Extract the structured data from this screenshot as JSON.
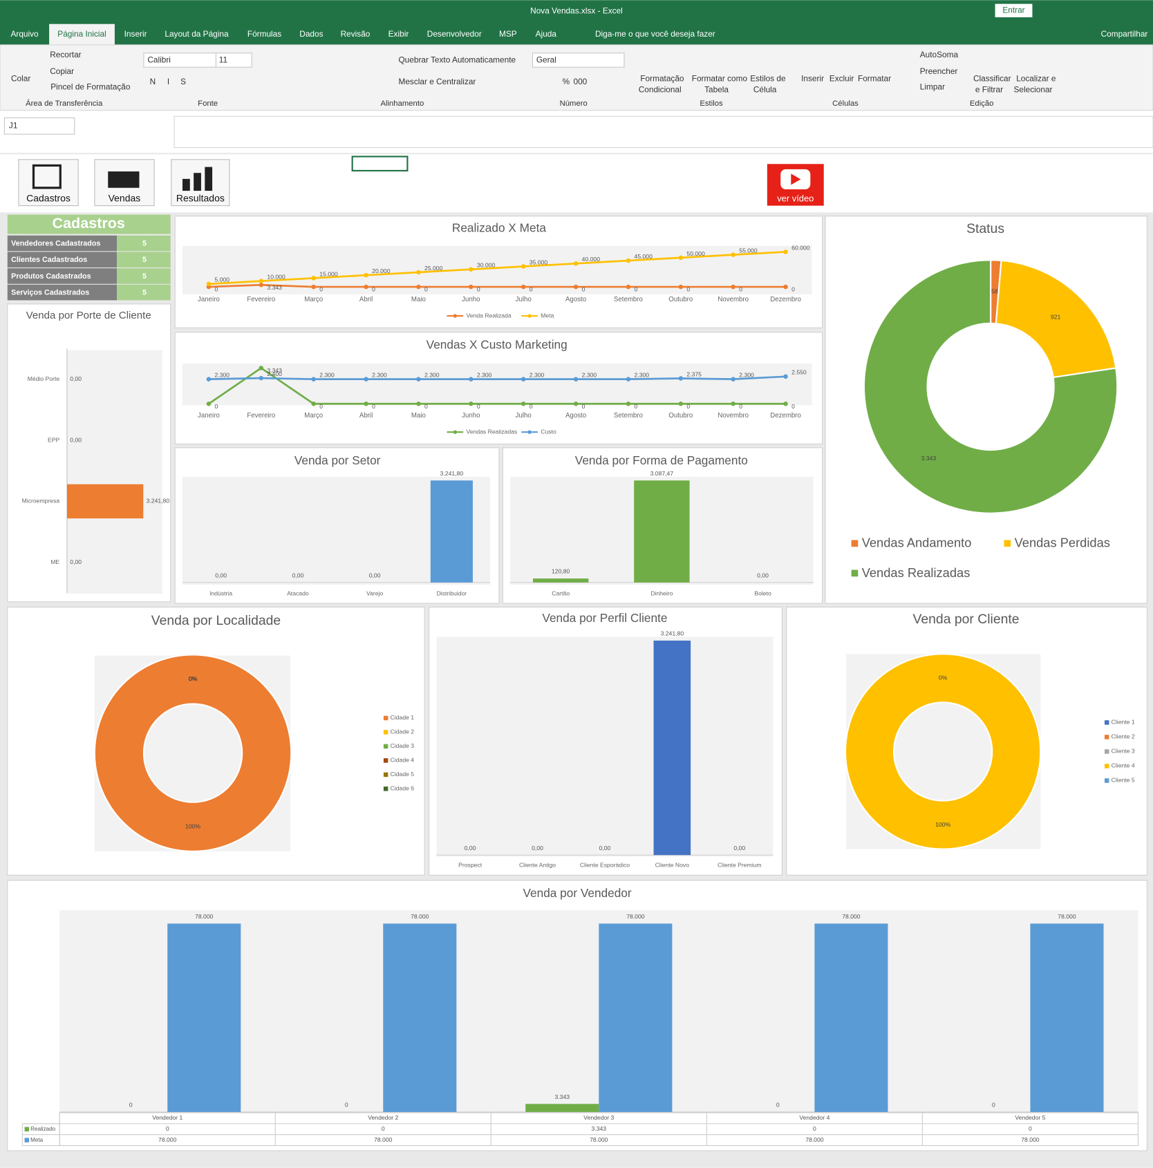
{
  "window": {
    "title": "Nova Vendas.xlsx  -  Excel",
    "login": "Entrar"
  },
  "ribbon": {
    "tabs": [
      "Arquivo",
      "Página Inicial",
      "Inserir",
      "Layout da Página",
      "Fórmulas",
      "Dados",
      "Revisão",
      "Exibir",
      "Desenvolvedor",
      "MSP",
      "Ajuda"
    ],
    "tell_me": "Diga-me o que você deseja fazer",
    "share": "Compartilhar",
    "clipboard": {
      "paste": "Colar",
      "cut": "Recortar",
      "copy": "Copiar",
      "painter": "Pincel de Formatação",
      "label": "Área de Transferência"
    },
    "font": {
      "name": "Calibri",
      "size": 11,
      "bold": "N",
      "italic": "I",
      "underline": "S",
      "label": "Fonte"
    },
    "alignment": {
      "wrap": "Quebrar Texto Automaticamente",
      "merge": "Mesclar e Centralizar",
      "label": "Alinhamento"
    },
    "number": {
      "format": "Geral",
      "percent": "%",
      "thousands": "000",
      "label": "Número"
    },
    "styles": {
      "conditional": [
        "Formatação",
        "Condicional"
      ],
      "table": [
        "Formatar como",
        "Tabela"
      ],
      "cell": [
        "Estilos de",
        "Célula"
      ],
      "label": "Estilos"
    },
    "cells": {
      "insert": "Inserir",
      "delete": "Excluir",
      "format": "Formatar",
      "label": "Células"
    },
    "editing": {
      "autosum": "AutoSoma",
      "fill": "Preencher",
      "clear": "Limpar",
      "sort": [
        "Classificar",
        "e Filtrar"
      ],
      "find": [
        "Localizar e",
        "Selecionar"
      ],
      "label": "Edição"
    }
  },
  "formula_bar": {
    "name_box": "J1"
  },
  "nav_buttons": [
    "Cadastros",
    "Vendas",
    "Resultados"
  ],
  "video": "ver vídeo",
  "cadastros": {
    "title": "Cadastros",
    "rows": [
      {
        "label": "Vendedores Cadastrados",
        "value": 5
      },
      {
        "label": "Clientes Cadastrados",
        "value": 5
      },
      {
        "label": "Produtos Cadastrados",
        "value": 5
      },
      {
        "label": "Serviços Cadastrados",
        "value": 5
      }
    ]
  },
  "chart_data": [
    {
      "type": "line",
      "title": "Realizado X Meta",
      "legend": "bottom",
      "categories": [
        "Janeiro",
        "Fevereiro",
        "Março",
        "Abril",
        "Maio",
        "Junho",
        "Julho",
        "Agosto",
        "Setembro",
        "Outubro",
        "Novembro",
        "Dezembro"
      ],
      "series": [
        {
          "name": "Venda Realizada",
          "color": "#ed7d31",
          "values": [
            0,
            3343,
            0,
            0,
            0,
            0,
            0,
            0,
            0,
            0,
            0,
            0
          ],
          "value_labels": [
            "0",
            "3.343",
            "0",
            "0",
            "0",
            "0",
            "0",
            "0",
            "0",
            "0",
            "0",
            "0"
          ]
        },
        {
          "name": "Meta",
          "color": "#ffc000",
          "values": [
            5000,
            10000,
            15000,
            20000,
            25000,
            30000,
            35000,
            40000,
            45000,
            50000,
            55000,
            60000
          ],
          "value_labels": [
            "5.000",
            "10.000",
            "15.000",
            "20.000",
            "25.000",
            "30.000",
            "35.000",
            "40.000",
            "45.000",
            "50.000",
            "55.000",
            "60.000"
          ]
        }
      ]
    },
    {
      "type": "line",
      "title": "Vendas X Custo Marketing",
      "legend": "bottom",
      "categories": [
        "Janeiro",
        "Fevereiro",
        "Março",
        "Abril",
        "Maio",
        "Junho",
        "Julho",
        "Agosto",
        "Setembro",
        "Outubro",
        "Novembro",
        "Dezembro"
      ],
      "series": [
        {
          "name": "Vendas Realizadas",
          "color": "#70ad47",
          "values": [
            0,
            3343,
            0,
            0,
            0,
            0,
            0,
            0,
            0,
            0,
            0,
            0
          ],
          "value_labels": [
            "0",
            "3.343",
            "0",
            "0",
            "0",
            "0",
            "0",
            "0",
            "0",
            "0",
            "0",
            "0"
          ]
        },
        {
          "name": "Custo",
          "color": "#5b9bd5",
          "values": [
            2300,
            2400,
            2300,
            2300,
            2300,
            2300,
            2300,
            2300,
            2300,
            2375,
            2300,
            2550
          ],
          "value_labels": [
            "2.300",
            "2.400",
            "2.300",
            "2.300",
            "2.300",
            "2.300",
            "2.300",
            "2.300",
            "2.300",
            "2.375",
            "2.300",
            "2.550"
          ]
        }
      ]
    },
    {
      "type": "bar",
      "horizontal": true,
      "title": "Venda por Porte de Cliente",
      "color": "#ed7d31",
      "categories": [
        "Médio Porte",
        "EPP",
        "Microempresa",
        "ME"
      ],
      "values": [
        0,
        0,
        3241.8,
        0
      ],
      "value_labels": [
        "0,00",
        "0,00",
        "3.241,80",
        "0,00"
      ]
    },
    {
      "type": "bar",
      "title": "Venda por Setor",
      "color": "#5b9bd5",
      "categories": [
        "Indústria",
        "Atacado",
        "Varejo",
        "Distribuidor"
      ],
      "values": [
        0,
        0,
        0,
        3241.8
      ],
      "value_labels": [
        "0,00",
        "0,00",
        "0,00",
        "3.241,80"
      ]
    },
    {
      "type": "bar",
      "title": "Venda por Forma de Pagamento",
      "color": "#70ad47",
      "categories": [
        "Cartão",
        "Dinheiro",
        "Boleto"
      ],
      "values": [
        120.8,
        3087.47,
        0
      ],
      "value_labels": [
        "120,80",
        "3.087,47",
        "0,00"
      ]
    },
    {
      "type": "donut",
      "title": "Status",
      "legend": "bottom",
      "categories": [
        "Vendas Andamento",
        "Vendas Perdidas",
        "Vendas Realizadas"
      ],
      "values": [
        58,
        921,
        3343
      ],
      "value_labels": [
        "58",
        "921",
        "3.343"
      ],
      "colors": [
        "#ed7d31",
        "#ffc000",
        "#70ad47"
      ]
    },
    {
      "type": "donut",
      "title": "Venda por Localidade",
      "legend": "right",
      "categories": [
        "Cidade 1",
        "Cidade 2",
        "Cidade 3",
        "Cidade 4",
        "Cidade 5",
        "Cidade 6"
      ],
      "values": [
        100,
        0,
        0,
        0,
        0,
        0
      ],
      "value_labels": [
        "100%",
        "0%",
        "0%",
        "0%",
        "0%",
        "0%"
      ],
      "colors": [
        "#ed7d31",
        "#ffc000",
        "#70ad47",
        "#9e480e",
        "#997300",
        "#43682b"
      ]
    },
    {
      "type": "bar",
      "title": "Venda por Perfil Cliente",
      "color": "#4472c4",
      "categories": [
        "Prospect",
        "Cliente Antigo",
        "Cliente Esporádico",
        "Cliente Novo",
        "Cliente Premium"
      ],
      "values": [
        0,
        0,
        0,
        3241.8,
        0
      ],
      "value_labels": [
        "0,00",
        "0,00",
        "0,00",
        "3.241,80",
        "0,00"
      ]
    },
    {
      "type": "donut",
      "title": "Venda por Cliente",
      "legend": "right",
      "categories": [
        "Cliente 1",
        "Cliente 2",
        "Cliente 3",
        "Cliente 4",
        "Cliente 5"
      ],
      "values": [
        0,
        0,
        0,
        100,
        0
      ],
      "value_labels": [
        "0%",
        "0%",
        "0%",
        "100%",
        "0%"
      ],
      "colors": [
        "#4472c4",
        "#ed7d31",
        "#a5a5a5",
        "#ffc000",
        "#5b9bd5"
      ]
    },
    {
      "type": "bar",
      "title": "Venda por Vendedor",
      "data_table": true,
      "categories": [
        "Vendedor 1",
        "Vendedor 2",
        "Vendedor 3",
        "Vendedor 4",
        "Vendedor 5"
      ],
      "series": [
        {
          "name": "Realizado",
          "color": "#70ad47",
          "values": [
            0,
            0,
            3343,
            0,
            0
          ],
          "value_labels": [
            "0",
            "0",
            "3.343",
            "0",
            "0"
          ]
        },
        {
          "name": "Meta",
          "color": "#5b9bd5",
          "values": [
            78000,
            78000,
            78000,
            78000,
            78000
          ],
          "value_labels": [
            "78.000",
            "78.000",
            "78.000",
            "78.000",
            "78.000"
          ]
        }
      ]
    }
  ]
}
